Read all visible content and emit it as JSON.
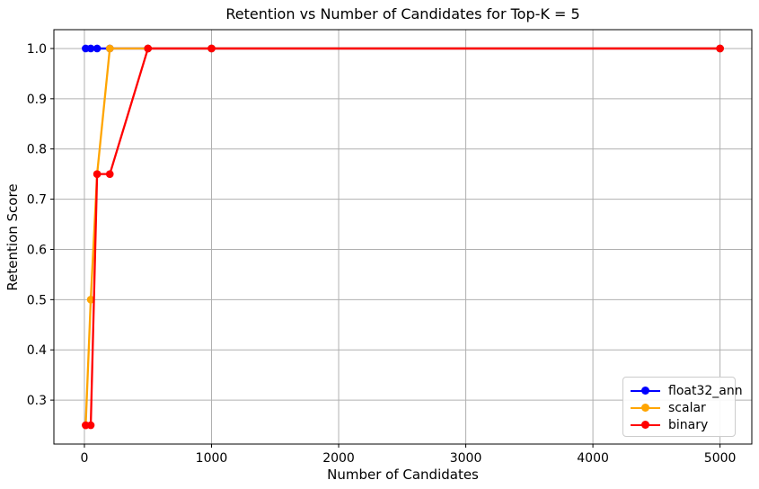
{
  "figure": {
    "background_color": "#ffffff",
    "text_color": "#000000"
  },
  "chart_data": {
    "type": "line",
    "title": "Retention vs Number of Candidates for Top-K = 5",
    "xlabel": "Number of Candidates",
    "ylabel": "Retention Score",
    "x": [
      10,
      50,
      100,
      200,
      500,
      1000,
      5000
    ],
    "series": [
      {
        "name": "float32_ann",
        "color": "#0000ff",
        "values": [
          1.0,
          1.0,
          1.0,
          1.0,
          1.0,
          1.0,
          1.0
        ]
      },
      {
        "name": "scalar",
        "color": "#ffa500",
        "values": [
          0.25,
          0.5,
          0.75,
          1.0,
          1.0,
          1.0,
          1.0
        ]
      },
      {
        "name": "binary",
        "color": "#ff0000",
        "values": [
          0.25,
          0.25,
          0.75,
          0.75,
          1.0,
          1.0,
          1.0
        ]
      }
    ],
    "marker": "o",
    "grid": true,
    "grid_color": "#b0b0b0",
    "spine_color": "#000000",
    "legend_position": "lower right",
    "xlim": [
      -240,
      5250
    ],
    "ylim": [
      0.2125,
      1.0375
    ],
    "x_ticks": {
      "values": [
        0,
        1000,
        2000,
        3000,
        4000,
        5000
      ],
      "labels": [
        "0",
        "1000",
        "2000",
        "3000",
        "4000",
        "5000"
      ]
    },
    "y_ticks": {
      "values": [
        0.3,
        0.4,
        0.5,
        0.6,
        0.7,
        0.8,
        0.9,
        1.0
      ],
      "labels": [
        "0.3",
        "0.4",
        "0.5",
        "0.6",
        "0.7",
        "0.8",
        "0.9",
        "1.0"
      ]
    }
  }
}
